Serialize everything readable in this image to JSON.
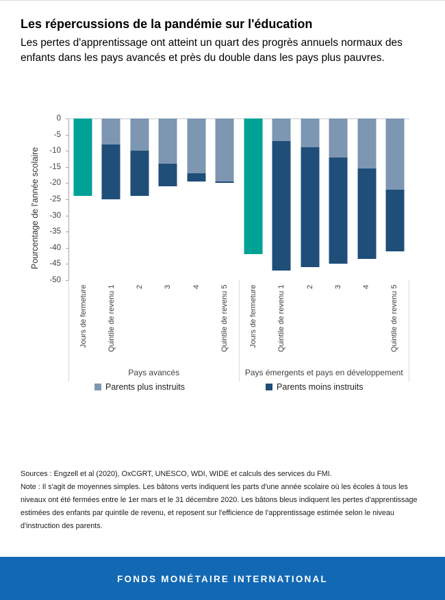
{
  "page": {
    "title": "Les répercussions de la pandémie sur l'éducation",
    "subtitle": "Les pertes d'apprentissage ont atteint un quart des progrès annuels normaux des enfants dans les pays avancés et près du double dans les pays plus pauvres.",
    "sources": "Sources : Engzell et al (2020), OxCGRT, UNESCO, WDI, WIDE et calculs des services du FMI.",
    "note": "Note : Il s'agit de moyennes simples. Les bâtons verts indiquent les parts d'une année scolaire où les écoles à tous les niveaux ont été fermées entre le 1er mars et le 31 décembre 2020. Les bâtons bleus indiquent les pertes d'apprentissage estimées des enfants par quintile de revenu, et reposent sur l'efficience de l'apprentissage estimée selon le niveau d'instruction des parents.",
    "footer": "FONDS MONÉTAIRE INTERNATIONAL",
    "footer_bg": "#1268b3"
  },
  "chart_data": {
    "type": "bar",
    "stacked": true,
    "title": "",
    "ylabel": "Pourcentage de l'année scolaire",
    "ylim": [
      -50,
      0
    ],
    "yticks": [
      0,
      -5,
      -10,
      -15,
      -20,
      -25,
      -30,
      -35,
      -40,
      -45,
      -50
    ],
    "grid": false,
    "legend_position": "bottom",
    "colors": {
      "closure": "#00a296",
      "more_educated": "#7d96b2",
      "less_educated": "#1f4e79"
    },
    "legend": [
      {
        "key": "more_educated",
        "label": "Parents plus instruits"
      },
      {
        "key": "less_educated",
        "label": "Parents moins instruits"
      }
    ],
    "groups": [
      {
        "label": "Pays avancés",
        "bars": [
          {
            "label": "Jours de fermeture",
            "segments": [
              {
                "key": "closure",
                "value": -24
              }
            ]
          },
          {
            "label": "Quintile de revenu 1",
            "segments": [
              {
                "key": "more_educated",
                "value": -8
              },
              {
                "key": "less_educated",
                "value": -17
              }
            ]
          },
          {
            "label": "2",
            "segments": [
              {
                "key": "more_educated",
                "value": -10
              },
              {
                "key": "less_educated",
                "value": -14
              }
            ]
          },
          {
            "label": "3",
            "segments": [
              {
                "key": "more_educated",
                "value": -14
              },
              {
                "key": "less_educated",
                "value": -7
              }
            ]
          },
          {
            "label": "4",
            "segments": [
              {
                "key": "more_educated",
                "value": -17
              },
              {
                "key": "less_educated",
                "value": -2.5
              }
            ]
          },
          {
            "label": "Quintile de revenu 5",
            "segments": [
              {
                "key": "more_educated",
                "value": -19.5
              },
              {
                "key": "less_educated",
                "value": -0.5
              }
            ]
          }
        ]
      },
      {
        "label": "Pays émergents et pays en développement",
        "bars": [
          {
            "label": "Jours de fermeture",
            "segments": [
              {
                "key": "closure",
                "value": -42
              }
            ]
          },
          {
            "label": "Quintile de revenu 1",
            "segments": [
              {
                "key": "more_educated",
                "value": -7
              },
              {
                "key": "less_educated",
                "value": -40
              }
            ]
          },
          {
            "label": "2",
            "segments": [
              {
                "key": "more_educated",
                "value": -9
              },
              {
                "key": "less_educated",
                "value": -37
              }
            ]
          },
          {
            "label": "3",
            "segments": [
              {
                "key": "more_educated",
                "value": -12
              },
              {
                "key": "less_educated",
                "value": -33
              }
            ]
          },
          {
            "label": "4",
            "segments": [
              {
                "key": "more_educated",
                "value": -15.5
              },
              {
                "key": "less_educated",
                "value": -28
              }
            ]
          },
          {
            "label": "Quintile de revenu 5",
            "segments": [
              {
                "key": "more_educated",
                "value": -22
              },
              {
                "key": "less_educated",
                "value": -19
              }
            ]
          }
        ]
      }
    ]
  }
}
